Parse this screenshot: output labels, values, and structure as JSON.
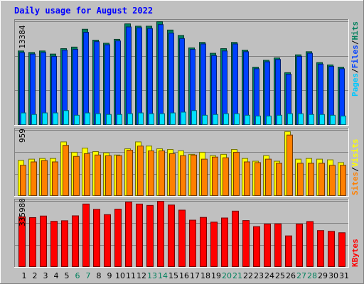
{
  "chart_data": [
    {
      "type": "bar",
      "title": "Daily usage for August 2022",
      "ylabel": "",
      "ytick_label": "13384",
      "ylim": [
        0,
        13384
      ],
      "legend": [
        "Pages",
        "/",
        "Files",
        "/",
        "Hits"
      ],
      "legend_placement": "right-vertical",
      "categories": [
        "1",
        "2",
        "3",
        "4",
        "5",
        "6",
        "7",
        "8",
        "9",
        "10",
        "11",
        "12",
        "13",
        "14",
        "15",
        "16",
        "17",
        "18",
        "19",
        "20",
        "21",
        "22",
        "23",
        "24",
        "25",
        "26",
        "27",
        "28",
        "29",
        "30",
        "31"
      ],
      "weekend_days": [
        "6",
        "7",
        "13",
        "14",
        "20",
        "21",
        "27",
        "28"
      ],
      "series": [
        {
          "name": "Hits",
          "values": [
            9600,
            9400,
            9600,
            9200,
            9900,
            10100,
            12400,
            11000,
            10600,
            11100,
            13100,
            12800,
            12800,
            13384,
            12300,
            11600,
            10000,
            10700,
            9300,
            9900,
            10700,
            9700,
            7500,
            8400,
            8700,
            6800,
            9100,
            9500,
            8100,
            7800,
            7500
          ]
        },
        {
          "name": "Files",
          "values": [
            9400,
            9200,
            9400,
            8900,
            9700,
            9800,
            12000,
            10800,
            10400,
            10900,
            12700,
            12600,
            12500,
            13000,
            11900,
            11200,
            9800,
            10500,
            9000,
            9600,
            10500,
            9500,
            7300,
            8200,
            8500,
            6600,
            8900,
            9300,
            7900,
            7600,
            7300
          ]
        },
        {
          "name": "Pages",
          "values": [
            1600,
            1400,
            1600,
            1600,
            1900,
            1300,
            1600,
            1500,
            1400,
            1400,
            1500,
            1600,
            1500,
            1500,
            1600,
            1700,
            1900,
            1300,
            1400,
            1500,
            1500,
            1300,
            1200,
            1200,
            1300,
            1500,
            1500,
            1400,
            1400,
            1300,
            1200
          ]
        }
      ]
    },
    {
      "type": "bar",
      "ytick_label": "959",
      "ylim": [
        0,
        959
      ],
      "legend": [
        "Sites",
        "/",
        "Visits"
      ],
      "series": [
        {
          "name": "Visits",
          "values": [
            520,
            540,
            550,
            550,
            790,
            640,
            700,
            650,
            630,
            600,
            690,
            790,
            730,
            690,
            680,
            660,
            610,
            640,
            590,
            610,
            680,
            550,
            510,
            590,
            510,
            940,
            540,
            550,
            540,
            530,
            490
          ]
        },
        {
          "name": "Sites",
          "values": [
            450,
            500,
            520,
            500,
            740,
            580,
            620,
            600,
            590,
            590,
            670,
            730,
            660,
            660,
            620,
            590,
            600,
            540,
            570,
            560,
            640,
            500,
            490,
            540,
            480,
            890,
            480,
            480,
            480,
            450,
            450
          ]
        }
      ]
    },
    {
      "type": "bar",
      "ytick_label": "335980",
      "ylim": [
        0,
        335980
      ],
      "legend": [
        "KBytes"
      ],
      "series": [
        {
          "name": "KBytes",
          "values": [
            257000,
            253000,
            261000,
            234000,
            237000,
            262000,
            322000,
            295000,
            268000,
            296000,
            332000,
            322000,
            315000,
            335980,
            317000,
            291000,
            240000,
            254000,
            230000,
            251000,
            286000,
            238000,
            207000,
            220000,
            221000,
            160000,
            220000,
            233000,
            187000,
            183000,
            176000
          ]
        }
      ]
    }
  ],
  "colors": {
    "background": "#c0c0c0",
    "title": "#0000ff",
    "hits": "#00805c",
    "files": "#0040ff",
    "pages": "#00e0ff",
    "visits": "#ffff00",
    "sites": "#ff8000",
    "kbytes": "#ff0000",
    "weekday_label": "#000000",
    "weekend_label": "#00805c",
    "legend_sep": "#000000",
    "legend_hits": "#00805c",
    "legend_files": "#0040ff",
    "legend_pages": "#00c8ff",
    "legend_visits": "#ffff00",
    "legend_sites": "#ff8000",
    "legend_kbytes": "#ff0000"
  }
}
